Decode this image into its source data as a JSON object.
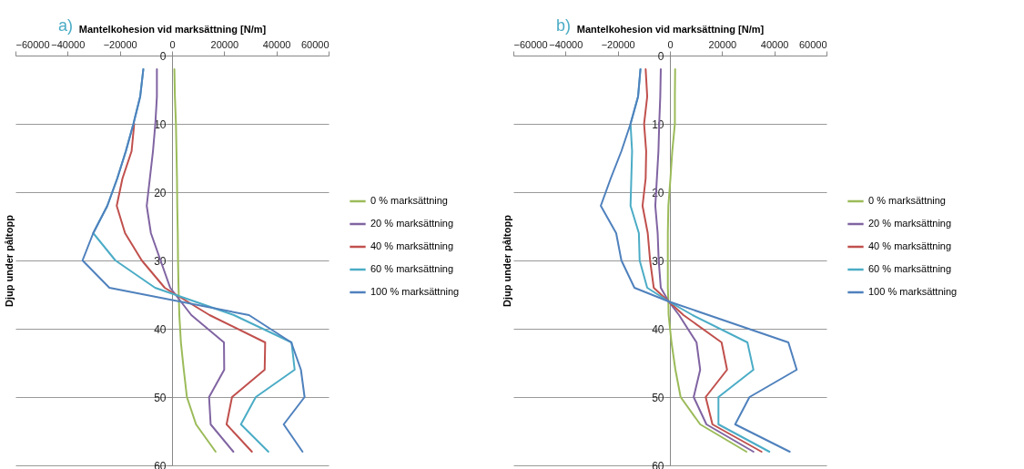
{
  "chart_data": [
    {
      "type": "line",
      "title": "a)",
      "xlabel": "Mantelkohesion vid marksättning [N/m]",
      "ylabel": "Djup under påltopp",
      "xlim": [
        -60000,
        60000
      ],
      "xticks": [
        -60000,
        -40000,
        -20000,
        0,
        20000,
        40000,
        60000
      ],
      "ylim": [
        60,
        0
      ],
      "yticks": [
        0,
        10,
        20,
        30,
        40,
        50,
        60
      ],
      "grid": "y",
      "legend": "right",
      "series": [
        {
          "name": "0 % marksättning",
          "color": "#9bbb59",
          "x": [
            900,
            1100,
            1500,
            1700,
            1900,
            2000,
            2200,
            2300,
            2500,
            2800,
            3400,
            4500,
            5700,
            9200,
            16700
          ],
          "values": [
            2,
            6,
            10,
            14,
            18,
            22,
            26,
            30,
            34,
            38,
            42,
            46,
            50,
            54,
            58
          ]
        },
        {
          "name": "20 % marksättning",
          "color": "#8064a2",
          "x": [
            -5800,
            -5800,
            -6400,
            -7300,
            -8500,
            -9700,
            -8100,
            -4400,
            -700,
            7400,
            19900,
            20000,
            14200,
            14800,
            23500
          ],
          "values": [
            2,
            6,
            10,
            14,
            18,
            22,
            26,
            30,
            34,
            38,
            42,
            46,
            50,
            54,
            58
          ]
        },
        {
          "name": "40 % marksättning",
          "color": "#c0504d",
          "x": [
            -14500,
            -15500,
            -19000,
            -21200,
            -18000,
            -11600,
            -2800,
            14400,
            35700,
            35500,
            23000,
            20900,
            30600
          ],
          "values": [
            10,
            14,
            18,
            22,
            26,
            30,
            34,
            38,
            42,
            46,
            50,
            54,
            58
          ]
        },
        {
          "name": "60 % marksättning",
          "color": "#4bacc6",
          "x": [
            -11000,
            -12200,
            -14800,
            -17700,
            -21000,
            -24800,
            -30200,
            -21700,
            -6500,
            23700,
            45800,
            47000,
            32100,
            26400,
            36900
          ],
          "values": [
            2,
            6,
            10,
            14,
            18,
            22,
            26,
            30,
            34,
            38,
            42,
            46,
            50,
            54,
            58
          ]
        },
        {
          "name": "100 % marksättning",
          "color": "#4f81bd",
          "x": [
            -11000,
            -12200,
            -14800,
            -17700,
            -21000,
            -24800,
            -30200,
            -34300,
            -24000,
            29500,
            45700,
            49400,
            50800,
            42800,
            50000
          ],
          "values": [
            2,
            6,
            10,
            14,
            18,
            22,
            26,
            30,
            34,
            38,
            42,
            46,
            50,
            54,
            58
          ]
        }
      ]
    },
    {
      "type": "line",
      "title": "b)",
      "xlabel": "Mantelkohesion vid marksättning [N/m]",
      "ylabel": "Djup under påltopp",
      "xlim": [
        -60000,
        60000
      ],
      "xticks": [
        -60000,
        -40000,
        -20000,
        0,
        20000,
        40000,
        60000
      ],
      "ylim": [
        60,
        0
      ],
      "yticks": [
        0,
        10,
        20,
        30,
        40,
        50,
        60
      ],
      "grid": "y",
      "legend": "right",
      "series": [
        {
          "name": "0 % marksättning",
          "color": "#9bbb59",
          "x": [
            2000,
            1900,
            1900,
            900,
            200,
            -600,
            -800,
            -800,
            -800,
            -600,
            -500,
            600,
            2100,
            4100,
            11600,
            29300
          ],
          "values": [
            2,
            6,
            10,
            14,
            18,
            22,
            26,
            30,
            34,
            36,
            38,
            42,
            46,
            50,
            54,
            58
          ]
        },
        {
          "name": "20 % marksättning",
          "color": "#8064a2",
          "x": [
            -3500,
            -3700,
            -4100,
            -4400,
            -5000,
            -5600,
            -4700,
            -4300,
            -3500,
            -500,
            3500,
            10200,
            11600,
            9100,
            14000,
            32000
          ],
          "values": [
            2,
            6,
            10,
            14,
            18,
            22,
            26,
            30,
            34,
            36,
            38,
            42,
            46,
            50,
            54,
            58
          ]
        },
        {
          "name": "40 % marksättning",
          "color": "#c0504d",
          "x": [
            -9300,
            -8700,
            -9900,
            -9100,
            -9300,
            -10500,
            -8500,
            -7600,
            -6200,
            -500,
            5200,
            19800,
            21900,
            13700,
            16300,
            35100
          ],
          "values": [
            2,
            6,
            10,
            14,
            18,
            22,
            26,
            30,
            34,
            36,
            38,
            42,
            46,
            50,
            54,
            58
          ]
        },
        {
          "name": "60 % marksättning",
          "color": "#4bacc6",
          "x": [
            -11300,
            -12200,
            -15100,
            -14500,
            -14800,
            -15100,
            -11900,
            -11600,
            -8700,
            -500,
            8700,
            29700,
            32000,
            18600,
            18600,
            38100
          ],
          "values": [
            2,
            6,
            10,
            14,
            18,
            22,
            26,
            30,
            34,
            36,
            38,
            42,
            46,
            50,
            54,
            58
          ]
        },
        {
          "name": "100 % marksättning",
          "color": "#4f81bd",
          "x": [
            -11300,
            -12200,
            -15100,
            -18600,
            -22700,
            -26500,
            -20600,
            -18600,
            -13600,
            -500,
            45400,
            48600,
            30500,
            25000,
            45900
          ],
          "values": [
            2,
            6,
            10,
            14,
            18,
            22,
            26,
            30,
            34,
            36,
            42,
            46,
            50,
            54,
            58
          ]
        }
      ]
    }
  ]
}
